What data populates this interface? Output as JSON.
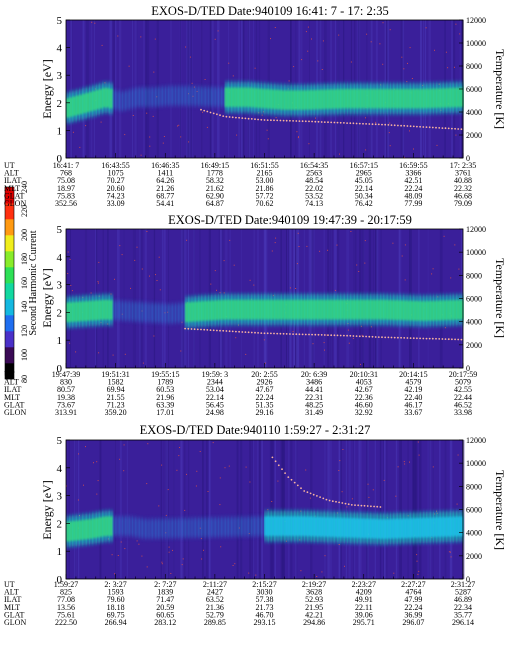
{
  "colors": {
    "background_dark": "#3a1f9a",
    "band_mid": "#19c8c0",
    "band_core": "#38e07a",
    "band_peak": "#9ef04a",
    "dot": "#ff5a3a",
    "dot_band": "#f7b2a0"
  },
  "colorbar": {
    "label": "Second Harmonic Current",
    "ticks": [
      "80",
      "100",
      "120",
      "140",
      "160",
      "180",
      "200",
      "220",
      "240"
    ],
    "colors": [
      "#000000",
      "#3a0a55",
      "#4a30c8",
      "#1f6ef0",
      "#14b8e0",
      "#12d8a0",
      "#2ee056",
      "#88ec2a",
      "#f0ee1c",
      "#ff9a12",
      "#ff3010",
      "#e00000"
    ]
  },
  "chart_data": [
    {
      "type": "heatmap",
      "title": "EXOS-D/TED   Date:940109  16:41: 7 - 17: 2:35",
      "ylabel": "Energy [eV]",
      "y2label": "Temperature [K]",
      "ylim": [
        0,
        5
      ],
      "y2lim": [
        0,
        12000
      ],
      "yticks": [
        "0",
        "1",
        "2",
        "3",
        "4",
        "5"
      ],
      "y2ticks": [
        "0",
        "2000",
        "4000",
        "6000",
        "8000",
        "10000",
        "12000"
      ],
      "row_labels": [
        "UT",
        "ALT",
        "ILAT",
        "MLT",
        "GLAT",
        "GLON"
      ],
      "columns": [
        [
          "16:41: 7",
          "768",
          "75.08",
          "18.97",
          "75.83",
          "352.56"
        ],
        [
          "16:43:55",
          "1075",
          "70.27",
          "20.60",
          "74.23",
          "33.09"
        ],
        [
          "16:46:35",
          "1411",
          "64.26",
          "21.26",
          "68.77",
          "54.41"
        ],
        [
          "16:49:15",
          "1778",
          "58.32",
          "21.62",
          "62.90",
          "64.87"
        ],
        [
          "16:51:55",
          "2165",
          "53.00",
          "21.86",
          "57.72",
          "70.62"
        ],
        [
          "16:54:35",
          "2563",
          "48.54",
          "22.02",
          "53.52",
          "74.13"
        ],
        [
          "16:57:15",
          "2965",
          "45.05",
          "22.14",
          "50.34",
          "76.42"
        ],
        [
          "16:59:55",
          "3366",
          "42.51",
          "22.24",
          "48.09",
          "77.99"
        ],
        [
          "17: 2:35",
          "3761",
          "40.88",
          "22.32",
          "46.68",
          "79.09"
        ]
      ],
      "band": [
        [
          0.0,
          1.8
        ],
        [
          0.04,
          1.95
        ],
        [
          0.1,
          2.2
        ],
        [
          0.14,
          2.05
        ],
        [
          0.18,
          2.2
        ],
        [
          0.22,
          2.2
        ],
        [
          0.26,
          2.25
        ],
        [
          0.3,
          2.25
        ],
        [
          0.4,
          2.2
        ],
        [
          0.46,
          2.2
        ],
        [
          0.5,
          2.15
        ],
        [
          0.55,
          2.1
        ],
        [
          0.6,
          2.1
        ],
        [
          0.7,
          2.15
        ],
        [
          0.8,
          2.15
        ],
        [
          0.9,
          2.15
        ],
        [
          1.0,
          2.2
        ]
      ],
      "onset": 0.4,
      "temperature_trace": [
        [
          0.34,
          4200
        ],
        [
          0.4,
          3600
        ],
        [
          0.5,
          3300
        ],
        [
          0.6,
          3200
        ],
        [
          0.7,
          3050
        ],
        [
          0.8,
          2900
        ],
        [
          0.9,
          2700
        ],
        [
          1.0,
          2500
        ]
      ]
    },
    {
      "type": "heatmap",
      "title": "EXOS-D/TED   Date:940109   19:47:39 - 20:17:59",
      "ylabel": "Energy [eV]",
      "y2label": "Temperature [K]",
      "ylim": [
        0,
        5
      ],
      "y2lim": [
        0,
        12000
      ],
      "yticks": [
        "0",
        "1",
        "2",
        "3",
        "4",
        "5"
      ],
      "y2ticks": [
        "0",
        "2000",
        "4000",
        "6000",
        "8000",
        "10000",
        "12000"
      ],
      "row_labels": [
        "UT",
        "ALT",
        "ILAT",
        "MLT",
        "GLAT",
        "GLON"
      ],
      "columns": [
        [
          "19:47:39",
          "830",
          "80.57",
          "19.38",
          "73.67",
          "313.91"
        ],
        [
          "19:51:31",
          "1582",
          "69.94",
          "21.55",
          "71.23",
          "359.20"
        ],
        [
          "19:55:15",
          "1789",
          "60.53",
          "21.96",
          "63.39",
          "17.01"
        ],
        [
          "19:59: 3",
          "2344",
          "53.04",
          "22.14",
          "56.45",
          "24.98"
        ],
        [
          "20: 2:55",
          "2926",
          "47.67",
          "22.24",
          "51.35",
          "29.16"
        ],
        [
          "20: 6:39",
          "3486",
          "44.41",
          "22.31",
          "48.25",
          "31.49"
        ],
        [
          "20:10:31",
          "4053",
          "42.67",
          "22.36",
          "46.60",
          "32.92"
        ],
        [
          "20:14:15",
          "4579",
          "42.19",
          "22.40",
          "46.17",
          "33.67"
        ],
        [
          "20:17:59",
          "5079",
          "42.55",
          "22.44",
          "46.52",
          "33.98"
        ]
      ],
      "band": [
        [
          0.0,
          2.0
        ],
        [
          0.1,
          2.1
        ],
        [
          0.2,
          2.0
        ],
        [
          0.26,
          1.95
        ],
        [
          0.34,
          2.05
        ],
        [
          0.4,
          2.1
        ],
        [
          0.5,
          2.1
        ],
        [
          0.6,
          2.1
        ],
        [
          0.7,
          2.1
        ],
        [
          0.8,
          2.1
        ],
        [
          0.9,
          2.05
        ],
        [
          1.0,
          2.1
        ]
      ],
      "onset": 0.3,
      "temperature_trace": [
        [
          0.3,
          3400
        ],
        [
          0.4,
          3200
        ],
        [
          0.5,
          3000
        ],
        [
          0.6,
          2900
        ],
        [
          0.7,
          2800
        ],
        [
          0.8,
          2650
        ],
        [
          0.9,
          2550
        ],
        [
          1.0,
          2450
        ]
      ]
    },
    {
      "type": "heatmap",
      "title": "EXOS-D/TED  Date:940110  1:59:27 - 2:31:27",
      "ylabel": "Energy [eV]",
      "y2label": "Temperature [K]",
      "ylim": [
        0,
        5
      ],
      "y2lim": [
        0,
        12000
      ],
      "yticks": [
        "0",
        "1",
        "2",
        "3",
        "4",
        "5"
      ],
      "y2ticks": [
        "0",
        "2000",
        "4000",
        "6000",
        "8000",
        "10000",
        "12000"
      ],
      "row_labels": [
        "UT",
        "ALT",
        "ILAT",
        "MLT",
        "GLAT",
        "GLON"
      ],
      "columns": [
        [
          "1:59:27",
          "825",
          "77.08",
          "13.56",
          "75.61",
          "222.50"
        ],
        [
          "2: 3:27",
          "1593",
          "79.60",
          "18.18",
          "69.75",
          "266.94"
        ],
        [
          "2: 7:27",
          "1839",
          "71.47",
          "20.59",
          "60.65",
          "283.12"
        ],
        [
          "2:11:27",
          "2427",
          "63.52",
          "21.36",
          "52.79",
          "289.85"
        ],
        [
          "2:15:27",
          "3030",
          "57.38",
          "21.73",
          "46.70",
          "293.15"
        ],
        [
          "2:19:27",
          "3628",
          "52.93",
          "21.95",
          "42.21",
          "294.86"
        ],
        [
          "2:23:27",
          "4209",
          "49.91",
          "22.11",
          "39.06",
          "295.71"
        ],
        [
          "2:27:27",
          "4764",
          "47.99",
          "22.24",
          "36.99",
          "296.07"
        ],
        [
          "2:31:27",
          "5287",
          "46.89",
          "22.34",
          "35.77",
          "296.14"
        ]
      ],
      "band": [
        [
          0.0,
          1.7
        ],
        [
          0.06,
          1.8
        ],
        [
          0.1,
          1.9
        ],
        [
          0.16,
          1.9
        ],
        [
          0.2,
          1.8
        ],
        [
          0.5,
          1.9
        ],
        [
          0.6,
          1.9
        ],
        [
          0.7,
          1.85
        ],
        [
          0.8,
          1.8
        ],
        [
          0.9,
          1.85
        ],
        [
          1.0,
          1.9
        ]
      ],
      "onset": 0.5,
      "temperature_trace": [
        [
          0.52,
          10500
        ],
        [
          0.56,
          8800
        ],
        [
          0.6,
          7600
        ],
        [
          0.66,
          6800
        ],
        [
          0.72,
          6400
        ],
        [
          0.8,
          6200
        ]
      ]
    }
  ]
}
